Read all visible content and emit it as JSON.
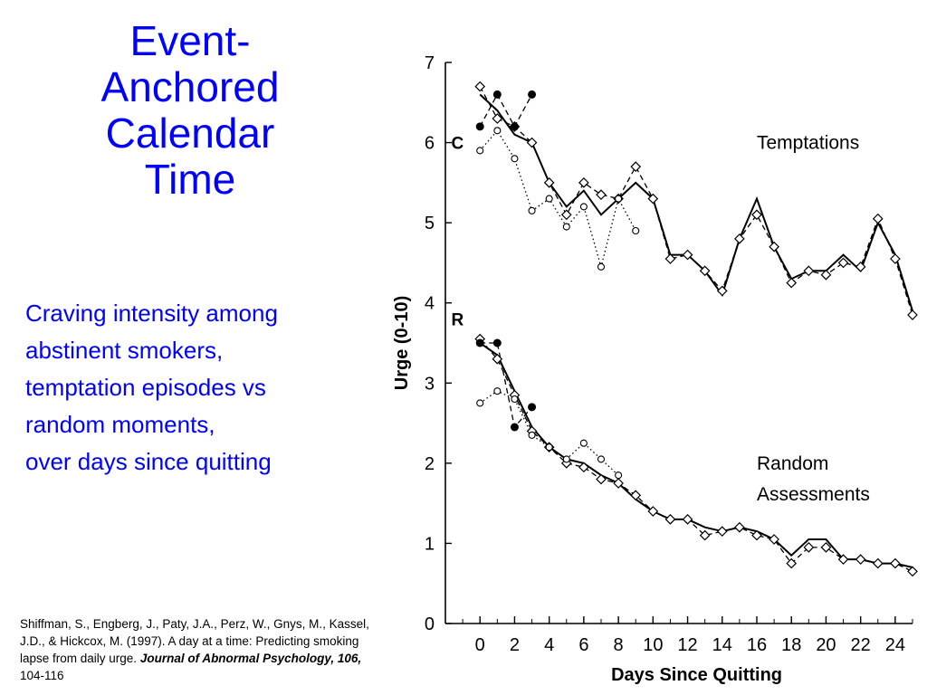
{
  "slide": {
    "title_lines": [
      "Event-",
      "Anchored",
      "Calendar",
      "Time"
    ],
    "subtitle_lines": [
      "Craving intensity among",
      "abstinent smokers,",
      "temptation episodes vs",
      "random moments,",
      "over days since quitting"
    ],
    "citation": {
      "text": "Shiffman, S., Engberg, J., Paty, J.A., Perz, W., Gnys, M., Kassel, J.D., & Hickcox, M. (1997). A day at a time: Predicting smoking lapse from daily urge. ",
      "journal": "Journal of Abnormal Psychology, 106,",
      "pages": " 104-116"
    }
  },
  "chart_data": {
    "type": "line",
    "xlabel": "Days Since Quitting",
    "ylabel": "Urge (0-10)",
    "xlim": [
      -2,
      25
    ],
    "ylim": [
      0,
      7
    ],
    "xticks": [
      0,
      2,
      4,
      6,
      8,
      10,
      12,
      14,
      16,
      18,
      20,
      22,
      24
    ],
    "yticks": [
      0,
      1,
      2,
      3,
      4,
      5,
      6,
      7
    ],
    "grid": false,
    "legend": "none",
    "panel_labels": [
      {
        "text": "C",
        "x": -1.3,
        "y": 6.0
      },
      {
        "text": "R",
        "x": -1.3,
        "y": 3.8
      }
    ],
    "annotations": [
      {
        "lines": [
          "Temptations"
        ],
        "x": 16,
        "y": 6.0
      },
      {
        "lines": [
          "Random",
          "Assessments"
        ],
        "x": 16,
        "y": 2.0
      }
    ],
    "series": [
      {
        "panel": "C",
        "style": "solid",
        "marker": "none",
        "x": [
          0,
          1,
          2,
          3,
          4,
          5,
          6,
          7,
          8,
          9,
          10,
          11,
          12,
          13,
          14,
          15,
          16,
          17,
          18,
          19,
          20,
          21,
          22,
          23,
          24,
          25
        ],
        "y": [
          6.6,
          6.4,
          6.1,
          6.0,
          5.5,
          5.2,
          5.4,
          5.1,
          5.3,
          5.5,
          5.3,
          4.6,
          4.6,
          4.4,
          4.1,
          4.8,
          5.3,
          4.7,
          4.3,
          4.4,
          4.4,
          4.6,
          4.4,
          5.0,
          4.6,
          3.9
        ]
      },
      {
        "panel": "C",
        "style": "dashed",
        "marker": "open-diamond",
        "x": [
          0,
          1,
          2,
          3,
          4,
          5,
          6,
          7,
          8,
          9,
          10,
          11,
          12,
          13,
          14,
          15,
          16,
          17,
          18,
          19,
          20,
          21,
          22,
          23,
          24,
          25
        ],
        "y": [
          6.7,
          6.3,
          6.2,
          6.0,
          5.5,
          5.1,
          5.5,
          5.35,
          5.3,
          5.7,
          5.3,
          4.55,
          4.6,
          4.4,
          4.15,
          4.8,
          5.1,
          4.7,
          4.25,
          4.4,
          4.35,
          4.5,
          4.45,
          5.05,
          4.55,
          3.85
        ]
      },
      {
        "panel": "C",
        "style": "dotted",
        "marker": "open-circle",
        "x": [
          0,
          1,
          2,
          3,
          4,
          5,
          6,
          7,
          8,
          9
        ],
        "y": [
          5.9,
          6.15,
          5.8,
          5.15,
          5.3,
          4.95,
          5.2,
          4.45,
          5.3,
          4.9
        ]
      },
      {
        "panel": "C",
        "style": "dashed",
        "marker": "filled-circle",
        "x": [
          0,
          1,
          2,
          3
        ],
        "y": [
          6.2,
          6.6,
          6.2,
          6.6
        ]
      },
      {
        "panel": "R",
        "style": "solid",
        "marker": "none",
        "x": [
          0,
          1,
          2,
          3,
          4,
          5,
          6,
          7,
          8,
          9,
          10,
          11,
          12,
          13,
          14,
          15,
          16,
          17,
          18,
          19,
          20,
          21,
          22,
          23,
          24,
          25
        ],
        "y": [
          3.5,
          3.35,
          2.9,
          2.45,
          2.2,
          2.05,
          2.0,
          1.85,
          1.75,
          1.55,
          1.4,
          1.3,
          1.3,
          1.2,
          1.15,
          1.2,
          1.15,
          1.05,
          0.85,
          1.05,
          1.05,
          0.8,
          0.8,
          0.75,
          0.75,
          0.7
        ]
      },
      {
        "panel": "R",
        "style": "dashed",
        "marker": "open-diamond",
        "x": [
          0,
          1,
          2,
          3,
          4,
          5,
          6,
          7,
          8,
          9,
          10,
          11,
          12,
          13,
          14,
          15,
          16,
          17,
          18,
          19,
          20,
          21,
          22,
          23,
          24,
          25
        ],
        "y": [
          3.55,
          3.3,
          2.85,
          2.4,
          2.2,
          2.0,
          1.95,
          1.8,
          1.75,
          1.6,
          1.4,
          1.3,
          1.3,
          1.1,
          1.15,
          1.2,
          1.1,
          1.05,
          0.75,
          0.95,
          0.95,
          0.8,
          0.8,
          0.75,
          0.75,
          0.65
        ]
      },
      {
        "panel": "R",
        "style": "dotted",
        "marker": "open-circle",
        "x": [
          0,
          1,
          2,
          3,
          4,
          5,
          6,
          7,
          8
        ],
        "y": [
          2.75,
          2.9,
          2.8,
          2.35,
          2.2,
          2.05,
          2.25,
          2.05,
          1.85
        ]
      },
      {
        "panel": "R",
        "style": "dashed",
        "marker": "filled-circle",
        "x": [
          0,
          1,
          2,
          3
        ],
        "y": [
          3.5,
          3.5,
          2.45,
          2.7
        ]
      }
    ]
  }
}
